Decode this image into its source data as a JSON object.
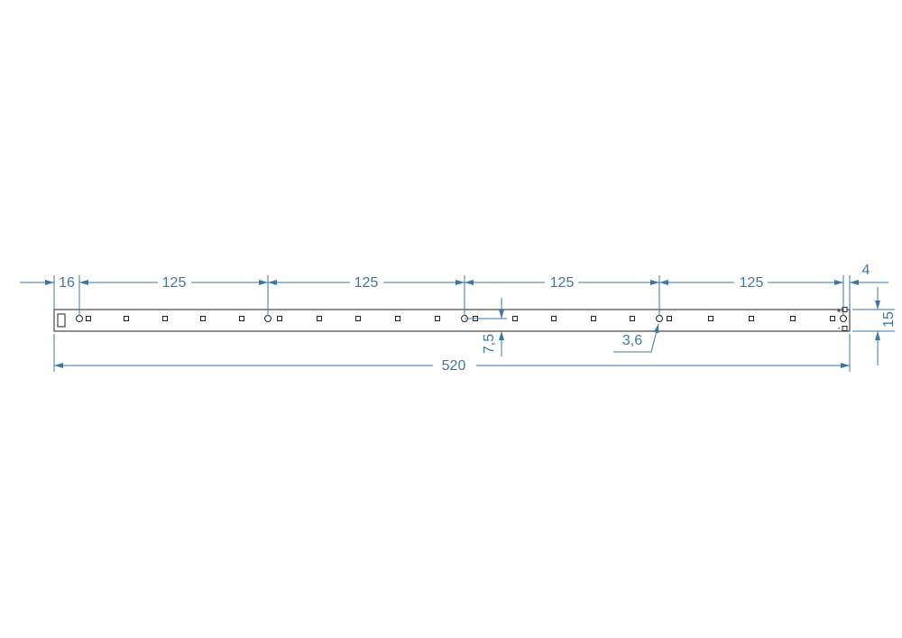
{
  "dimensions": {
    "left_offset": "16",
    "spacing": [
      "125",
      "125",
      "125",
      "125"
    ],
    "right_offset": "4",
    "height": "15",
    "hole_center": "7,5",
    "hole_diameter": "3,6",
    "total_length": "520"
  },
  "polarity": {
    "plus": "+",
    "minus": "-"
  }
}
